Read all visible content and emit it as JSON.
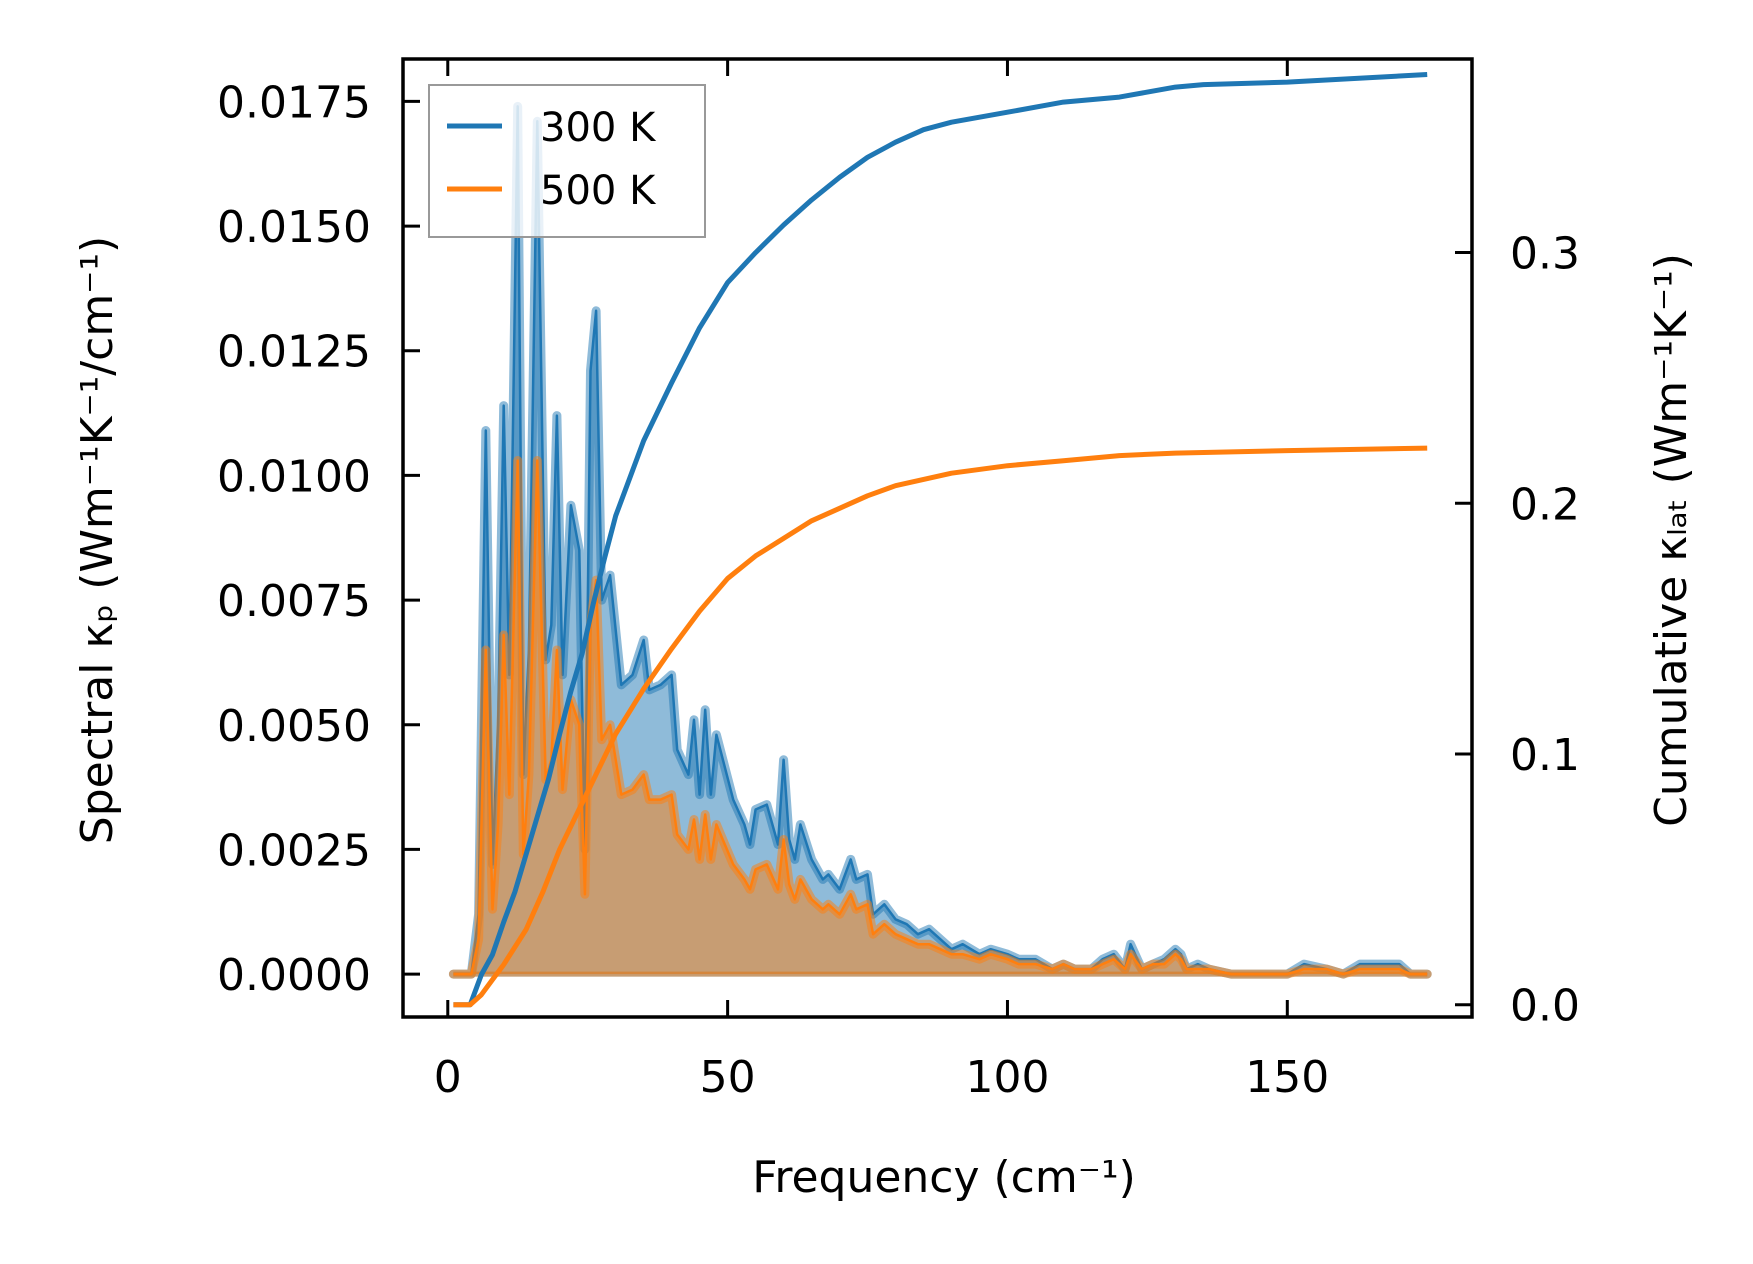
{
  "chart_data": {
    "type": "area",
    "title": "",
    "xlabel": "Frequency (cm⁻¹)",
    "ylabel": "Spectral κₚ (Wm⁻¹K⁻¹/cm⁻¹)",
    "y2label": "Cumulative κₗₐₜ (Wm⁻¹K⁻¹)",
    "xlim": [
      -8,
      183
    ],
    "ylim": [
      -0.00086,
      0.01835
    ],
    "y2lim": [
      -0.0049,
      0.3772
    ],
    "xticks": [
      "0",
      "50",
      "100",
      "150"
    ],
    "xtick_values": [
      0,
      50,
      100,
      150
    ],
    "yticks": [
      "0.0000",
      "0.0025",
      "0.0050",
      "0.0075",
      "0.0100",
      "0.0125",
      "0.0150",
      "0.0175"
    ],
    "ytick_values": [
      0,
      0.0025,
      0.005,
      0.0075,
      0.01,
      0.0125,
      0.015,
      0.0175
    ],
    "y2ticks": [
      "0.0",
      "0.1",
      "0.2",
      "0.3"
    ],
    "y2tick_values": [
      0,
      0.1,
      0.2,
      0.3
    ],
    "legend_position": "top-left",
    "grid": false,
    "colors": {
      "300 K": "#1f77b4",
      "500 K": "#ff7f0e"
    },
    "spectral_x": [
      1,
      3,
      4.2,
      5.5,
      6.8,
      8,
      9,
      10,
      11,
      12.5,
      13.5,
      14.5,
      16,
      17.5,
      18.5,
      19.5,
      20.5,
      22,
      23.5,
      24.5,
      25.5,
      26.5,
      27.5,
      29,
      31,
      33,
      35,
      36,
      38,
      40,
      41,
      43,
      44,
      45,
      46,
      47,
      48,
      51,
      53,
      54,
      55,
      57,
      59,
      60,
      61,
      62,
      63,
      65,
      67,
      68,
      70,
      72,
      73,
      75,
      76,
      78,
      80,
      82,
      84,
      86,
      88,
      90,
      92,
      95,
      97,
      100,
      102,
      105,
      108,
      110,
      112,
      115,
      117,
      119,
      121,
      122,
      124,
      126,
      128,
      130,
      131,
      132,
      134,
      136,
      140,
      150,
      153,
      157,
      160,
      163,
      167,
      170,
      172,
      175
    ],
    "series": [
      {
        "name": "300 K",
        "spectral": [
          0,
          0,
          0,
          0.0012,
          0.0109,
          0.0022,
          0.005,
          0.0114,
          0.006,
          0.0174,
          0.004,
          0.0065,
          0.0171,
          0.0063,
          0.007,
          0.0112,
          0.006,
          0.0094,
          0.0085,
          0.0025,
          0.0121,
          0.0133,
          0.0075,
          0.008,
          0.0058,
          0.006,
          0.0067,
          0.0057,
          0.0058,
          0.006,
          0.0045,
          0.004,
          0.0051,
          0.0036,
          0.0053,
          0.0036,
          0.0048,
          0.0035,
          0.003,
          0.0026,
          0.0033,
          0.0034,
          0.0026,
          0.0043,
          0.0027,
          0.0023,
          0.003,
          0.0023,
          0.0019,
          0.002,
          0.0017,
          0.0023,
          0.0019,
          0.002,
          0.0012,
          0.0014,
          0.0011,
          0.001,
          0.0008,
          0.0009,
          0.0007,
          0.0005,
          0.0006,
          0.0004,
          0.0005,
          0.0004,
          0.0003,
          0.0003,
          0.0001,
          0.0002,
          0.0001,
          0.0001,
          0.0003,
          0.0004,
          0.0001,
          0.0006,
          0.0001,
          0.0002,
          0.0003,
          0.0005,
          0.0004,
          0.0001,
          0.0002,
          0.0001,
          0,
          0,
          0.0002,
          0.0001,
          0,
          0.0002,
          0.0002,
          0.0002,
          0,
          0
        ],
        "cumulative_x": [
          1,
          4,
          6,
          8,
          10,
          12,
          14,
          16,
          18,
          20,
          22,
          24,
          26,
          28,
          30,
          35,
          40,
          45,
          50,
          55,
          60,
          65,
          70,
          75,
          80,
          85,
          90,
          100,
          110,
          115,
          120,
          125,
          130,
          135,
          150,
          175
        ],
        "cumulative": [
          0,
          0,
          0.012,
          0.02,
          0.033,
          0.045,
          0.06,
          0.075,
          0.09,
          0.108,
          0.125,
          0.14,
          0.16,
          0.178,
          0.195,
          0.225,
          0.248,
          0.27,
          0.288,
          0.3,
          0.311,
          0.321,
          0.33,
          0.338,
          0.344,
          0.349,
          0.352,
          0.356,
          0.36,
          0.361,
          0.362,
          0.364,
          0.366,
          0.367,
          0.368,
          0.371
        ]
      },
      {
        "name": "500 K",
        "spectral": [
          0,
          0,
          0,
          0.0007,
          0.0065,
          0.0013,
          0.003,
          0.0068,
          0.0036,
          0.0103,
          0.0024,
          0.004,
          0.0103,
          0.0039,
          0.0043,
          0.0065,
          0.0037,
          0.0055,
          0.005,
          0.0016,
          0.007,
          0.0079,
          0.0047,
          0.005,
          0.0036,
          0.0037,
          0.004,
          0.0035,
          0.0035,
          0.0036,
          0.0028,
          0.0025,
          0.0031,
          0.0023,
          0.0032,
          0.0023,
          0.003,
          0.0022,
          0.0019,
          0.0017,
          0.0021,
          0.0022,
          0.0017,
          0.0027,
          0.0018,
          0.0015,
          0.0019,
          0.0015,
          0.0013,
          0.0014,
          0.0012,
          0.0016,
          0.0013,
          0.0014,
          0.0008,
          0.001,
          0.0008,
          0.0007,
          0.0006,
          0.0006,
          0.0005,
          0.0004,
          0.0004,
          0.0003,
          0.0004,
          0.0003,
          0.0002,
          0.0002,
          0.0001,
          0.0002,
          0.0001,
          0.0001,
          0.0002,
          0.0003,
          0.0001,
          0.0004,
          0.0001,
          0.0002,
          0.0002,
          0.0004,
          0.0003,
          0.0001,
          0.0001,
          0.0001,
          0,
          0,
          0.0001,
          0.0001,
          0,
          0.0001,
          0.0001,
          0.0001,
          0,
          0
        ],
        "cumulative_x": [
          1,
          4,
          6,
          8,
          10,
          14,
          17,
          20,
          25,
          30,
          35,
          40,
          45,
          50,
          55,
          60,
          65,
          70,
          75,
          80,
          90,
          100,
          110,
          120,
          130,
          150,
          175
        ],
        "cumulative": [
          0,
          0,
          0.004,
          0.01,
          0.016,
          0.03,
          0.045,
          0.062,
          0.085,
          0.108,
          0.126,
          0.142,
          0.157,
          0.17,
          0.179,
          0.186,
          0.193,
          0.198,
          0.203,
          0.207,
          0.212,
          0.215,
          0.217,
          0.219,
          0.22,
          0.221,
          0.222
        ]
      }
    ]
  }
}
